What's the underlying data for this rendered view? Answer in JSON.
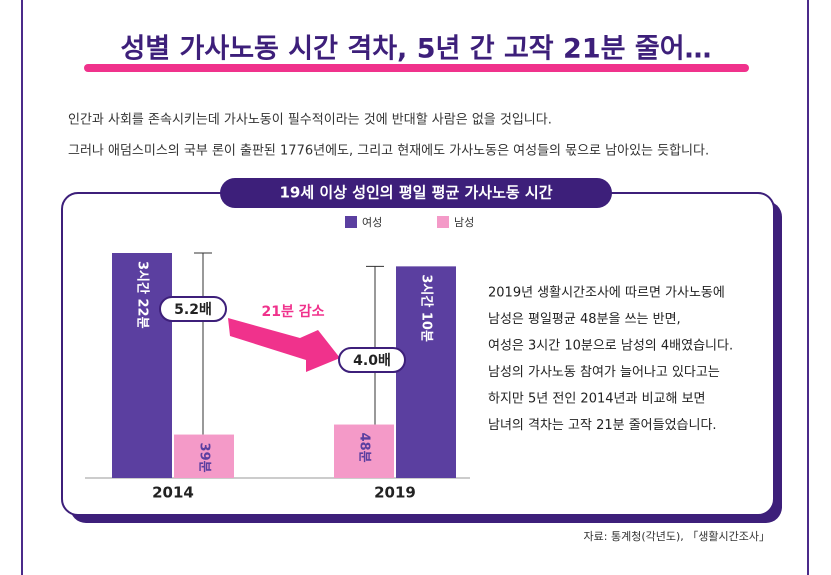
{
  "header": {
    "title": "성별 가사노동 시간 격차, 5년 간 고작 21분 줄어…"
  },
  "intro": [
    "인간과 사회를 존속시키는데 가사노동이 필수적이라는 것에 반대할 사람은 없을 것입니다.",
    "그러나 애덤스미스의 국부 론이 출판된 1776년에도, 그리고 현재에도 가사노동은 여성들의 몫으로 남아있는 듯합니다."
  ],
  "chart_data": {
    "type": "bar",
    "title": "19세 이상 성인의 평일 평균 가사노동 시간",
    "categories": [
      "2014",
      "2019"
    ],
    "series": [
      {
        "name": "여성",
        "color": "#5b3fa0",
        "values": [
          202,
          190
        ],
        "value_labels": [
          "3시간 22분",
          "3시간 10분"
        ]
      },
      {
        "name": "남성",
        "color": "#f49ac8",
        "values": [
          39,
          48
        ],
        "value_labels": [
          "39분",
          "48분"
        ]
      }
    ],
    "annotations": [
      "5.2배",
      "21분 감소",
      "4.0배"
    ]
  },
  "description": [
    "2019년 생활시간조사에 따르면 가사노동에",
    "남성은 평일평균 48분을 쓰는 반면,",
    "여성은 3시간 10분으로 남성의 4배였습니다.",
    "남성의 가사노동 참여가 늘어나고 있다고는",
    "하지만 5년 전인 2014년과 비교해 보면",
    "남녀의 격차는 고작 21분 줄어들었습니다."
  ],
  "source": "자료: 통계청(각년도), 「생활시간조사」"
}
